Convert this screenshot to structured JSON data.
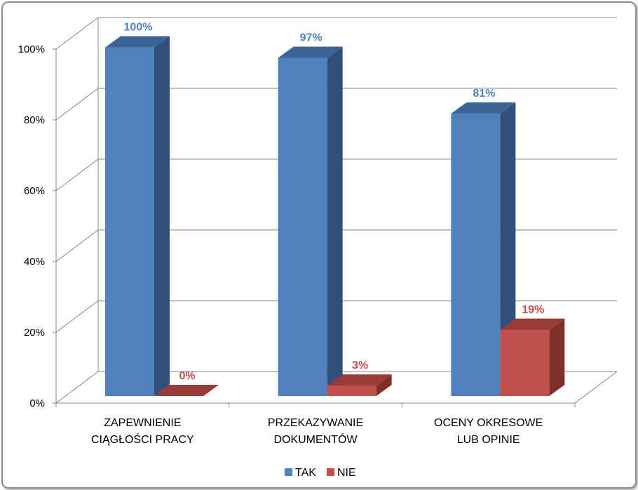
{
  "chart_data": {
    "type": "bar",
    "categories": [
      [
        "ZAPEWNIENIE",
        "CIĄGŁOŚCI PRACY"
      ],
      [
        "PRZEKAZYWANIE",
        "DOKUMENTÓW"
      ],
      [
        "OCENY OKRESOWE",
        "LUB OPINIE"
      ]
    ],
    "series": [
      {
        "name": "TAK",
        "values": [
          100,
          97,
          81
        ],
        "labels": [
          "100%",
          "97%",
          "81%"
        ]
      },
      {
        "name": "NIE",
        "values": [
          0,
          3,
          19
        ],
        "labels": [
          "0%",
          "3%",
          "19%"
        ]
      }
    ],
    "y_ticks": [
      "0%",
      "20%",
      "40%",
      "60%",
      "80%",
      "100%"
    ],
    "ylim": [
      0,
      100
    ],
    "grid": true,
    "legend_position": "bottom",
    "three_d": true,
    "colors": {
      "TAK": {
        "front": "#4f81bd",
        "side": "#30507a",
        "top": "#3c6596"
      },
      "NIE": {
        "front": "#c0504d",
        "side": "#7e302d",
        "top": "#9a3b38"
      },
      "TAK_label": "#4f81bd",
      "NIE_label": "#c0504d",
      "grid": "#868686"
    }
  }
}
